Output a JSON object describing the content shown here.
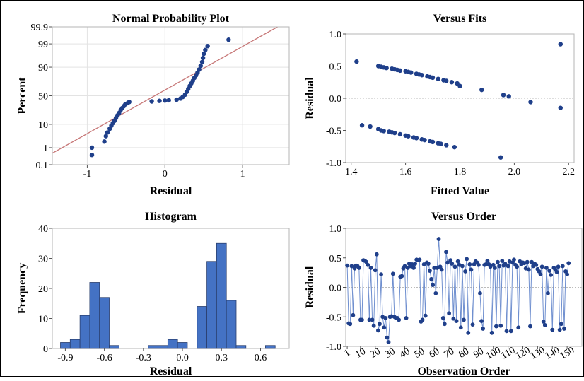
{
  "colors": {
    "points": "#1f3f8a",
    "bars": "#4472c4",
    "bar_edge": "#2a3f6e",
    "refline": "#c77777",
    "zeroline": "#bbbbbb",
    "frame": "#b5b5b5",
    "grid": "#e3e3e3"
  },
  "chart_data": [
    {
      "type": "scatter",
      "title": "Normal Probability Plot",
      "xlabel": "Residual",
      "ylabel": "Percent",
      "xlim": [
        -1.45,
        1.6
      ],
      "ylim_percent": [
        0.1,
        99.9
      ],
      "y_scale": "normal-probability",
      "x_ticks": [
        -1,
        0,
        1
      ],
      "x_tick_labels": [
        "-1",
        "0",
        "1"
      ],
      "y_ticks": [
        0.1,
        1,
        10,
        50,
        90,
        99,
        99.9
      ],
      "y_tick_labels": [
        "0.1",
        "1",
        "10",
        "50",
        "90",
        "99",
        "99.9"
      ],
      "grid": true,
      "reference_line": {
        "from": [
          -1.45,
          0.5
        ],
        "to": [
          1.45,
          99.9
        ]
      },
      "points": [
        {
          "x": -0.94,
          "y": 0.4
        },
        {
          "x": -0.94,
          "y": 1.0
        },
        {
          "x": -0.78,
          "y": 2.0
        },
        {
          "x": -0.76,
          "y": 3.5
        },
        {
          "x": -0.74,
          "y": 5.0
        },
        {
          "x": -0.71,
          "y": 7.0
        },
        {
          "x": -0.69,
          "y": 9.0
        },
        {
          "x": -0.67,
          "y": 11.0
        },
        {
          "x": -0.65,
          "y": 13.0
        },
        {
          "x": -0.63,
          "y": 16.0
        },
        {
          "x": -0.61,
          "y": 19.0
        },
        {
          "x": -0.59,
          "y": 22.0
        },
        {
          "x": -0.57,
          "y": 26.0
        },
        {
          "x": -0.55,
          "y": 29.0
        },
        {
          "x": -0.53,
          "y": 32.0
        },
        {
          "x": -0.51,
          "y": 35.0
        },
        {
          "x": -0.48,
          "y": 37.0
        },
        {
          "x": -0.46,
          "y": 39.0
        },
        {
          "x": -0.17,
          "y": 40.0
        },
        {
          "x": -0.07,
          "y": 41.0
        },
        {
          "x": 0.0,
          "y": 41.5
        },
        {
          "x": 0.05,
          "y": 42.0
        },
        {
          "x": 0.15,
          "y": 43.0
        },
        {
          "x": 0.2,
          "y": 45.0
        },
        {
          "x": 0.23,
          "y": 48.0
        },
        {
          "x": 0.26,
          "y": 52.0
        },
        {
          "x": 0.28,
          "y": 57.0
        },
        {
          "x": 0.3,
          "y": 62.0
        },
        {
          "x": 0.32,
          "y": 67.0
        },
        {
          "x": 0.34,
          "y": 71.0
        },
        {
          "x": 0.36,
          "y": 75.0
        },
        {
          "x": 0.38,
          "y": 79.0
        },
        {
          "x": 0.4,
          "y": 82.0
        },
        {
          "x": 0.42,
          "y": 85.0
        },
        {
          "x": 0.44,
          "y": 88.0
        },
        {
          "x": 0.46,
          "y": 91.0
        },
        {
          "x": 0.48,
          "y": 93.5
        },
        {
          "x": 0.49,
          "y": 95.5
        },
        {
          "x": 0.5,
          "y": 97.0
        },
        {
          "x": 0.52,
          "y": 98.0
        },
        {
          "x": 0.55,
          "y": 98.7
        },
        {
          "x": 0.82,
          "y": 99.4
        }
      ]
    },
    {
      "type": "scatter",
      "title": "Versus Fits",
      "xlabel": "Fitted Value",
      "ylabel": "Residual",
      "xlim": [
        1.38,
        2.22
      ],
      "ylim": [
        -1.0,
        1.0
      ],
      "x_ticks": [
        1.4,
        1.6,
        1.8,
        2.0,
        2.2
      ],
      "x_tick_labels": [
        "1.4",
        "1.6",
        "1.8",
        "2.0",
        "2.2"
      ],
      "y_ticks": [
        -1.0,
        -0.5,
        0.0,
        0.5,
        1.0
      ],
      "y_tick_labels": [
        "-1.0",
        "-0.5",
        "0.0",
        "0.5",
        "1.0"
      ],
      "grid": false,
      "zero_line": true,
      "points": [
        {
          "x": 1.42,
          "y": 0.57
        },
        {
          "x": 1.44,
          "y": -0.42
        },
        {
          "x": 1.47,
          "y": -0.44
        },
        {
          "x": 1.5,
          "y": 0.5
        },
        {
          "x": 1.51,
          "y": 0.49
        },
        {
          "x": 1.52,
          "y": 0.48
        },
        {
          "x": 1.53,
          "y": 0.47
        },
        {
          "x": 1.55,
          "y": 0.46
        },
        {
          "x": 1.56,
          "y": 0.45
        },
        {
          "x": 1.57,
          "y": 0.44
        },
        {
          "x": 1.58,
          "y": 0.43
        },
        {
          "x": 1.6,
          "y": 0.42
        },
        {
          "x": 1.61,
          "y": 0.41
        },
        {
          "x": 1.62,
          "y": 0.4
        },
        {
          "x": 1.64,
          "y": 0.38
        },
        {
          "x": 1.65,
          "y": 0.37
        },
        {
          "x": 1.66,
          "y": 0.36
        },
        {
          "x": 1.68,
          "y": 0.34
        },
        {
          "x": 1.69,
          "y": 0.33
        },
        {
          "x": 1.7,
          "y": 0.32
        },
        {
          "x": 1.72,
          "y": 0.3
        },
        {
          "x": 1.74,
          "y": 0.28
        },
        {
          "x": 1.75,
          "y": 0.27
        },
        {
          "x": 1.77,
          "y": 0.25
        },
        {
          "x": 1.79,
          "y": 0.23
        },
        {
          "x": 1.5,
          "y": -0.48
        },
        {
          "x": 1.51,
          "y": -0.5
        },
        {
          "x": 1.52,
          "y": -0.51
        },
        {
          "x": 1.54,
          "y": -0.52
        },
        {
          "x": 1.55,
          "y": -0.53
        },
        {
          "x": 1.56,
          "y": -0.54
        },
        {
          "x": 1.58,
          "y": -0.56
        },
        {
          "x": 1.6,
          "y": -0.58
        },
        {
          "x": 1.61,
          "y": -0.59
        },
        {
          "x": 1.63,
          "y": -0.61
        },
        {
          "x": 1.64,
          "y": -0.62
        },
        {
          "x": 1.66,
          "y": -0.64
        },
        {
          "x": 1.67,
          "y": -0.65
        },
        {
          "x": 1.69,
          "y": -0.67
        },
        {
          "x": 1.7,
          "y": -0.68
        },
        {
          "x": 1.72,
          "y": -0.7
        },
        {
          "x": 1.73,
          "y": -0.71
        },
        {
          "x": 1.75,
          "y": -0.73
        },
        {
          "x": 1.78,
          "y": -0.76
        },
        {
          "x": 1.8,
          "y": 0.19
        },
        {
          "x": 1.88,
          "y": 0.13
        },
        {
          "x": 1.95,
          "y": -0.92
        },
        {
          "x": 1.96,
          "y": 0.05
        },
        {
          "x": 1.98,
          "y": 0.03
        },
        {
          "x": 2.06,
          "y": -0.06
        },
        {
          "x": 2.17,
          "y": 0.84
        },
        {
          "x": 2.17,
          "y": -0.15
        }
      ]
    },
    {
      "type": "bar",
      "title": "Histogram",
      "xlabel": "Residual",
      "ylabel": "Frequency",
      "xlim": [
        -1.0,
        0.82
      ],
      "ylim": [
        0,
        40
      ],
      "bin_width": 0.075,
      "x_ticks": [
        -0.9,
        -0.6,
        -0.3,
        0.0,
        0.3,
        0.6
      ],
      "x_tick_labels": [
        "-0.9",
        "-0.6",
        "-0.3",
        "0.0",
        "0.3",
        "0.6"
      ],
      "y_ticks": [
        0,
        10,
        20,
        30,
        40
      ],
      "y_tick_labels": [
        "0",
        "10",
        "20",
        "30",
        "40"
      ],
      "bin_centers": [
        -0.9,
        -0.825,
        -0.75,
        -0.675,
        -0.6,
        -0.525,
        -0.45,
        -0.375,
        -0.3,
        -0.225,
        -0.15,
        -0.075,
        0.0,
        0.075,
        0.15,
        0.225,
        0.3,
        0.375,
        0.45,
        0.525,
        0.6,
        0.675,
        0.75
      ],
      "values": [
        2,
        3,
        11,
        22,
        17,
        1,
        0,
        0,
        0,
        1,
        1,
        3,
        2,
        0,
        14,
        29,
        35,
        16,
        1,
        0,
        0,
        1,
        0
      ]
    },
    {
      "type": "line",
      "title": "Versus Order",
      "xlabel": "Observation Order",
      "ylabel": "Residual",
      "xlim": [
        0,
        160
      ],
      "ylim": [
        -1.0,
        1.0
      ],
      "x_ticks": [
        1,
        10,
        20,
        30,
        40,
        50,
        60,
        70,
        80,
        90,
        100,
        110,
        120,
        130,
        140,
        150
      ],
      "x_tick_labels": [
        "1",
        "10",
        "20",
        "30",
        "40",
        "50",
        "60",
        "70",
        "80",
        "90",
        "100",
        "110",
        "120",
        "130",
        "140",
        "150"
      ],
      "y_ticks": [
        -1.0,
        -0.5,
        0.0,
        0.5,
        1.0
      ],
      "y_tick_labels": [
        "-1.0",
        "-0.5",
        "0.0",
        "0.5",
        "1.0"
      ],
      "zero_line": true,
      "markers": true,
      "values": [
        0.37,
        -0.61,
        -0.62,
        0.36,
        -0.47,
        0.32,
        0.37,
        0.36,
        0.33,
        -0.55,
        -0.55,
        0.46,
        0.45,
        0.43,
        0.38,
        -0.55,
        0.33,
        -0.55,
        -0.65,
        0.29,
        0.56,
        -0.73,
        -0.62,
        0.22,
        -0.5,
        -0.68,
        -0.52,
        -0.85,
        -0.93,
        -0.5,
        -0.49,
        0.23,
        -0.5,
        -0.52,
        -0.52,
        -0.55,
        0.18,
        0.19,
        0.32,
        0.36,
        -0.52,
        0.33,
        0.4,
        0.36,
        0.39,
        0.33,
        0.4,
        0.47,
        0.46,
        0.47,
        -0.58,
        -0.55,
        0.39,
        -0.48,
        0.42,
        0.4,
        0.28,
        0.14,
        0.04,
        0.33,
        -0.1,
        0.33,
        0.82,
        0.35,
        0.3,
        -0.52,
        -0.62,
        0.6,
        0.42,
        -0.44,
        0.46,
        0.4,
        -0.53,
        0.35,
        -0.57,
        0.44,
        0.38,
        -0.68,
        0.36,
        -0.55,
        0.27,
        0.48,
        -0.77,
        0.39,
        0.3,
        -0.63,
        0.39,
        0.44,
        0.42,
        0.38,
        -0.1,
        -0.57,
        -0.7,
        0.38,
        0.39,
        0.45,
        0.39,
        0.35,
        -0.77,
        0.38,
        0.33,
        -0.66,
        0.43,
        0.36,
        -0.65,
        0.45,
        0.37,
        0.4,
        -0.74,
        0.36,
        0.44,
        -0.74,
        0.42,
        0.47,
        0.38,
        0.35,
        -0.68,
        0.44,
        0.39,
        0.42,
        0.41,
        0.32,
        0.43,
        0.3,
        -0.66,
        0.43,
        0.36,
        0.4,
        0.38,
        0.31,
        0.27,
        0.22,
        0.35,
        -0.58,
        -0.64,
        0.33,
        -0.1,
        0.28,
        0.21,
        -0.72,
        0.33,
        0.3,
        0.26,
        0.35,
        -0.72,
        -0.62,
        0.36,
        -0.7,
        0.27,
        0.22,
        0.41
      ]
    }
  ]
}
